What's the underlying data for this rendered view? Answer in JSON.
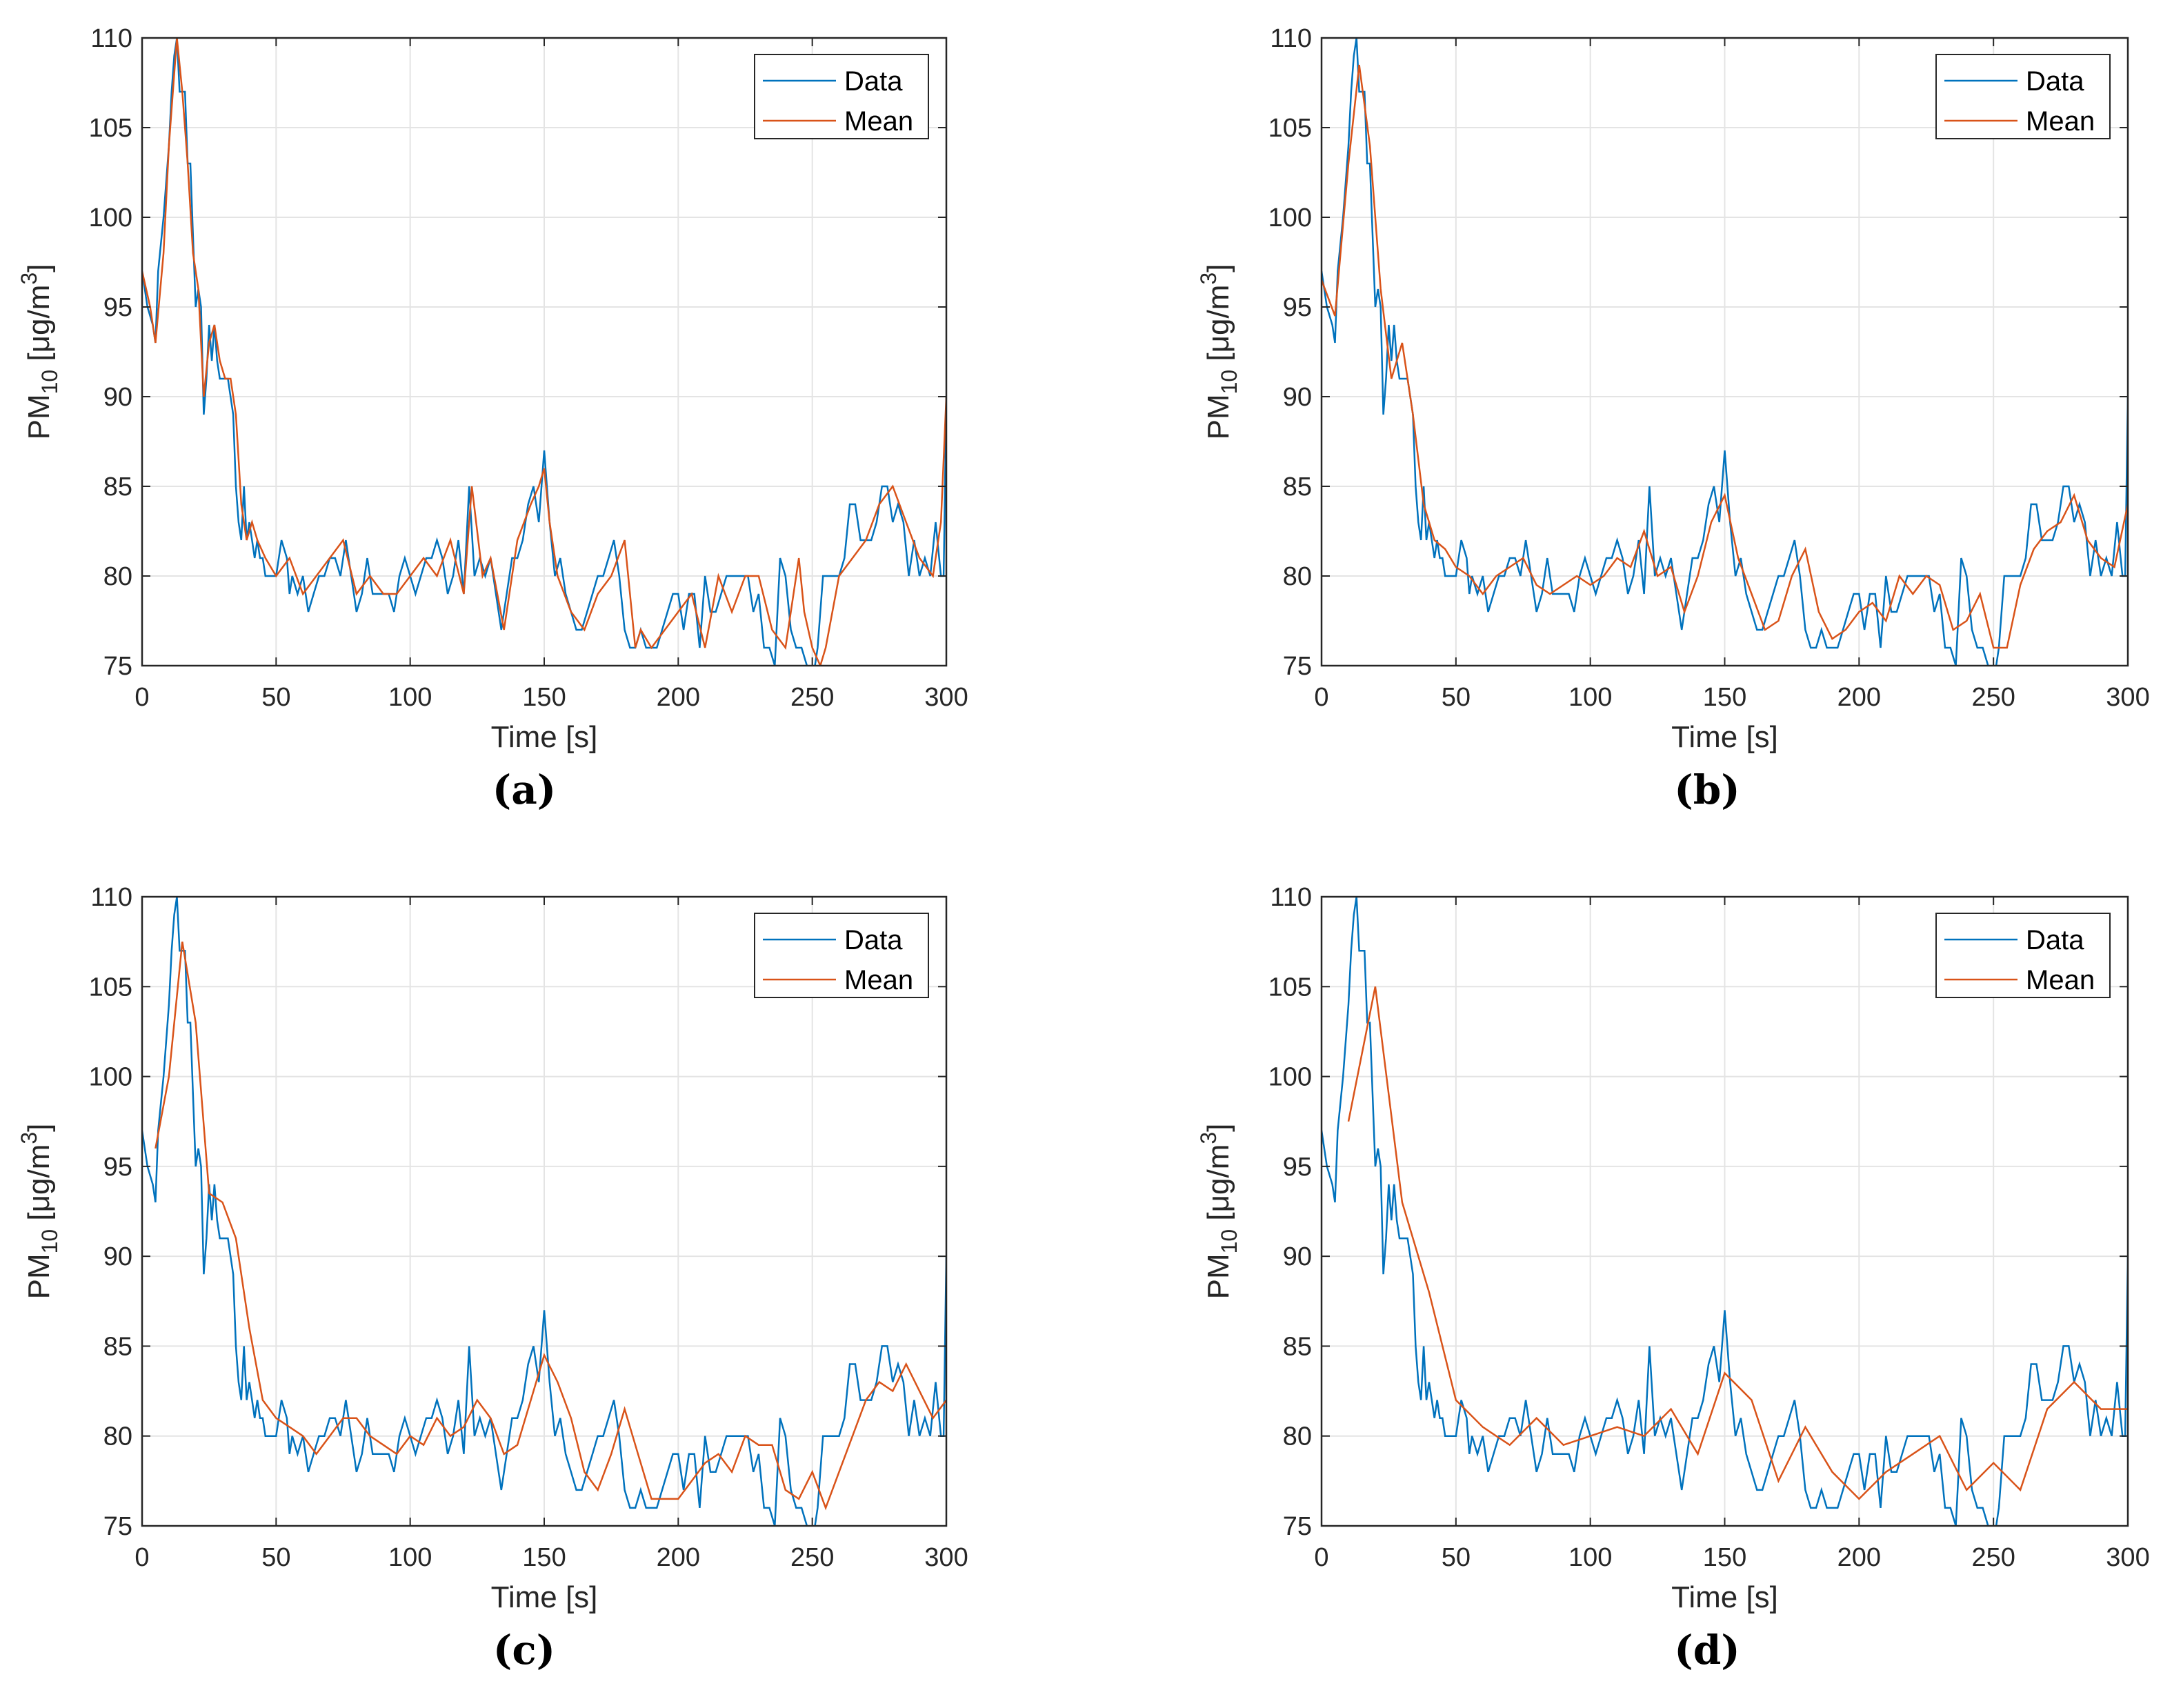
{
  "colors": {
    "data": "#0072BD",
    "mean": "#D95319",
    "grid": "#e4e4e4",
    "axis": "#262626"
  },
  "chart_data": [
    {
      "type": "line",
      "caption": "(a)",
      "xlabel": "Time [s]",
      "ylabel_main": "PM",
      "ylabel_sub": "10",
      "ylabel_unit": " [μg/m",
      "ylabel_sup": "3",
      "ylabel_end": "]",
      "xlim": [
        0,
        300
      ],
      "ylim": [
        75,
        110
      ],
      "xticks": [
        0,
        50,
        100,
        150,
        200,
        250,
        300
      ],
      "yticks": [
        75,
        80,
        85,
        90,
        95,
        100,
        105,
        110
      ],
      "legend": [
        "Data",
        "Mean"
      ],
      "legend_position": "top-right",
      "mean_x": [
        0,
        3,
        5,
        8,
        10,
        12,
        13,
        15,
        17,
        19,
        21,
        23,
        25,
        27,
        29,
        31,
        33,
        35,
        37,
        39,
        41,
        43,
        46,
        50,
        55,
        60,
        65,
        70,
        75,
        80,
        85,
        90,
        95,
        100,
        105,
        110,
        115,
        120,
        123,
        127,
        130,
        135,
        140,
        145,
        148,
        150,
        152,
        155,
        160,
        165,
        170,
        175,
        180,
        184,
        186,
        190,
        195,
        200,
        205,
        210,
        215,
        220,
        225,
        230,
        235,
        240,
        245,
        247,
        250,
        253,
        255,
        260,
        265,
        270,
        275,
        280,
        285,
        290,
        295,
        298,
        300
      ],
      "mean_y": [
        97,
        95,
        93,
        98,
        104,
        108,
        110,
        107,
        103,
        98,
        96,
        90,
        93,
        94,
        92,
        91,
        91,
        89,
        84,
        82,
        83,
        82,
        81,
        80,
        81,
        79,
        80,
        81,
        82,
        79,
        80,
        79,
        79,
        80,
        81,
        80,
        82,
        79,
        85,
        80,
        81,
        77,
        82,
        84,
        85,
        86,
        83,
        80,
        78,
        77,
        79,
        80,
        82,
        76,
        77,
        76,
        77,
        78,
        79,
        76,
        80,
        78,
        80,
        80,
        77,
        76,
        81,
        78,
        76,
        75,
        76,
        80,
        81,
        82,
        84,
        85,
        83,
        81,
        80,
        83,
        90
      ]
    },
    {
      "type": "line",
      "caption": "(b)",
      "xlabel": "Time [s]",
      "ylabel_main": "PM",
      "ylabel_sub": "10",
      "ylabel_unit": " [μg/m",
      "ylabel_sup": "3",
      "ylabel_end": "]",
      "xlim": [
        0,
        300
      ],
      "ylim": [
        75,
        110
      ],
      "xticks": [
        0,
        50,
        100,
        150,
        200,
        250,
        300
      ],
      "yticks": [
        75,
        80,
        85,
        90,
        95,
        100,
        105,
        110
      ],
      "legend": [
        "Data",
        "Mean"
      ],
      "legend_position": "top-right",
      "mean_x": [
        0,
        5,
        10,
        14,
        18,
        22,
        26,
        30,
        34,
        38,
        42,
        46,
        50,
        55,
        60,
        65,
        70,
        75,
        80,
        85,
        90,
        95,
        100,
        105,
        110,
        115,
        120,
        125,
        130,
        135,
        140,
        145,
        150,
        155,
        160,
        165,
        170,
        175,
        180,
        185,
        190,
        195,
        200,
        205,
        210,
        215,
        220,
        225,
        230,
        235,
        240,
        245,
        250,
        255,
        260,
        265,
        270,
        275,
        280,
        285,
        290,
        295,
        300
      ],
      "mean_y": [
        96.5,
        94.5,
        103,
        108.5,
        104,
        96,
        91,
        93,
        89,
        84,
        82,
        81.5,
        80.5,
        80,
        79,
        80,
        80.5,
        81,
        79.5,
        79,
        79.5,
        80,
        79.5,
        80,
        81,
        80.5,
        82.5,
        80,
        80.5,
        78,
        80,
        83,
        84.5,
        81,
        79,
        77,
        77.5,
        80,
        81.5,
        78,
        76.5,
        77,
        78,
        78.5,
        77.5,
        80,
        79,
        80,
        79.5,
        77,
        77.5,
        79,
        76,
        76,
        79.5,
        81.5,
        82.5,
        83,
        84.5,
        82,
        81,
        80.5,
        84
      ]
    },
    {
      "type": "line",
      "caption": "(c)",
      "xlabel": "Time [s]",
      "ylabel_main": "PM",
      "ylabel_sub": "10",
      "ylabel_unit": " [μg/m",
      "ylabel_sup": "3",
      "ylabel_end": "]",
      "xlim": [
        0,
        300
      ],
      "ylim": [
        75,
        110
      ],
      "xticks": [
        0,
        50,
        100,
        150,
        200,
        250,
        300
      ],
      "yticks": [
        75,
        80,
        85,
        90,
        95,
        100,
        105,
        110
      ],
      "legend": [
        "Data",
        "Mean"
      ],
      "legend_position": "top-right",
      "mean_x": [
        5,
        10,
        15,
        20,
        25,
        30,
        35,
        40,
        45,
        50,
        55,
        60,
        65,
        70,
        75,
        80,
        85,
        90,
        95,
        100,
        105,
        110,
        115,
        120,
        125,
        130,
        135,
        140,
        145,
        150,
        155,
        160,
        165,
        170,
        175,
        180,
        185,
        190,
        195,
        200,
        205,
        210,
        215,
        220,
        225,
        230,
        235,
        240,
        245,
        250,
        255,
        260,
        265,
        270,
        275,
        280,
        285,
        290,
        295,
        300
      ],
      "mean_y": [
        96,
        100,
        107.5,
        103,
        93.5,
        93,
        91,
        86,
        82,
        81,
        80.5,
        80,
        79,
        80,
        81,
        81,
        80,
        79.5,
        79,
        80,
        79.5,
        81,
        80,
        80.5,
        82,
        81,
        79,
        79.5,
        82,
        84.5,
        83,
        81,
        78,
        77,
        79,
        81.5,
        79,
        76.5,
        76.5,
        76.5,
        77.5,
        78.5,
        79,
        78,
        80,
        79.5,
        79.5,
        77,
        76.5,
        78,
        76,
        78,
        80,
        82,
        83,
        82.5,
        84,
        82.5,
        81,
        82
      ]
    },
    {
      "type": "line",
      "caption": "(d)",
      "xlabel": "Time [s]",
      "ylabel_main": "PM",
      "ylabel_sub": "10",
      "ylabel_unit": " [μg/m",
      "ylabel_sup": "3",
      "ylabel_end": "]",
      "xlim": [
        0,
        300
      ],
      "ylim": [
        75,
        110
      ],
      "xticks": [
        0,
        50,
        100,
        150,
        200,
        250,
        300
      ],
      "yticks": [
        75,
        80,
        85,
        90,
        95,
        100,
        105,
        110
      ],
      "legend": [
        "Data",
        "Mean"
      ],
      "legend_position": "top-right",
      "mean_x": [
        10,
        20,
        30,
        40,
        50,
        60,
        70,
        80,
        90,
        100,
        110,
        120,
        130,
        140,
        150,
        160,
        170,
        180,
        190,
        200,
        210,
        220,
        230,
        240,
        250,
        260,
        270,
        280,
        290,
        300
      ],
      "mean_y": [
        97.5,
        105,
        93,
        88,
        82,
        80.5,
        79.5,
        81,
        79.5,
        80,
        80.5,
        80,
        81.5,
        79,
        83.5,
        82,
        77.5,
        80.5,
        78,
        76.5,
        78,
        79,
        80,
        77,
        78.5,
        77,
        81.5,
        83,
        81.5,
        81.5
      ]
    }
  ],
  "data_series": {
    "name": "Data",
    "x": [
      0,
      2,
      4,
      5,
      6,
      8,
      10,
      11,
      12,
      13,
      14,
      16,
      17,
      18,
      19,
      20,
      21,
      22,
      23,
      24,
      25,
      26,
      27,
      28,
      29,
      30,
      32,
      34,
      35,
      36,
      37,
      38,
      39,
      40,
      41,
      42,
      43,
      44,
      45,
      46,
      48,
      50,
      52,
      54,
      55,
      56,
      58,
      60,
      62,
      64,
      66,
      68,
      70,
      72,
      74,
      76,
      78,
      80,
      82,
      84,
      86,
      88,
      90,
      92,
      94,
      96,
      98,
      100,
      102,
      104,
      106,
      108,
      110,
      112,
      114,
      116,
      118,
      120,
      122,
      124,
      126,
      128,
      130,
      132,
      134,
      136,
      138,
      140,
      142,
      144,
      146,
      148,
      150,
      152,
      154,
      156,
      158,
      160,
      162,
      164,
      166,
      168,
      170,
      172,
      174,
      176,
      178,
      180,
      182,
      184,
      186,
      188,
      190,
      192,
      194,
      196,
      198,
      200,
      202,
      204,
      206,
      208,
      210,
      212,
      214,
      216,
      218,
      220,
      222,
      224,
      226,
      228,
      230,
      232,
      234,
      236,
      238,
      240,
      242,
      244,
      246,
      248,
      250,
      252,
      254,
      256,
      258,
      260,
      262,
      264,
      266,
      268,
      270,
      272,
      274,
      276,
      278,
      280,
      282,
      284,
      286,
      288,
      290,
      292,
      294,
      296,
      298,
      299,
      300
    ],
    "y": [
      97,
      95,
      94,
      93,
      97,
      100,
      104,
      107,
      109,
      110,
      107,
      107,
      103,
      103,
      99,
      95,
      96,
      95,
      89,
      91,
      94,
      92,
      94,
      92,
      91,
      91,
      91,
      89,
      85,
      83,
      82,
      85,
      82,
      83,
      82,
      81,
      82,
      81,
      81,
      80,
      80,
      80,
      82,
      81,
      79,
      80,
      79,
      80,
      78,
      79,
      80,
      80,
      81,
      81,
      80,
      82,
      80,
      78,
      79,
      81,
      79,
      79,
      79,
      79,
      78,
      80,
      81,
      80,
      79,
      80,
      81,
      81,
      82,
      81,
      79,
      80,
      82,
      79,
      85,
      80,
      81,
      80,
      81,
      79,
      77,
      79,
      81,
      81,
      82,
      84,
      85,
      83,
      87,
      83,
      80,
      81,
      79,
      78,
      77,
      77,
      78,
      79,
      80,
      80,
      81,
      82,
      80,
      77,
      76,
      76,
      77,
      76,
      76,
      76,
      77,
      78,
      79,
      79,
      77,
      79,
      79,
      76,
      80,
      78,
      78,
      79,
      80,
      80,
      80,
      80,
      80,
      78,
      79,
      76,
      76,
      75,
      81,
      80,
      77,
      76,
      76,
      75,
      74,
      76,
      80,
      80,
      80,
      80,
      81,
      84,
      84,
      82,
      82,
      82,
      83,
      85,
      85,
      83,
      84,
      83,
      80,
      82,
      80,
      81,
      80,
      83,
      80,
      80,
      90
    ]
  }
}
